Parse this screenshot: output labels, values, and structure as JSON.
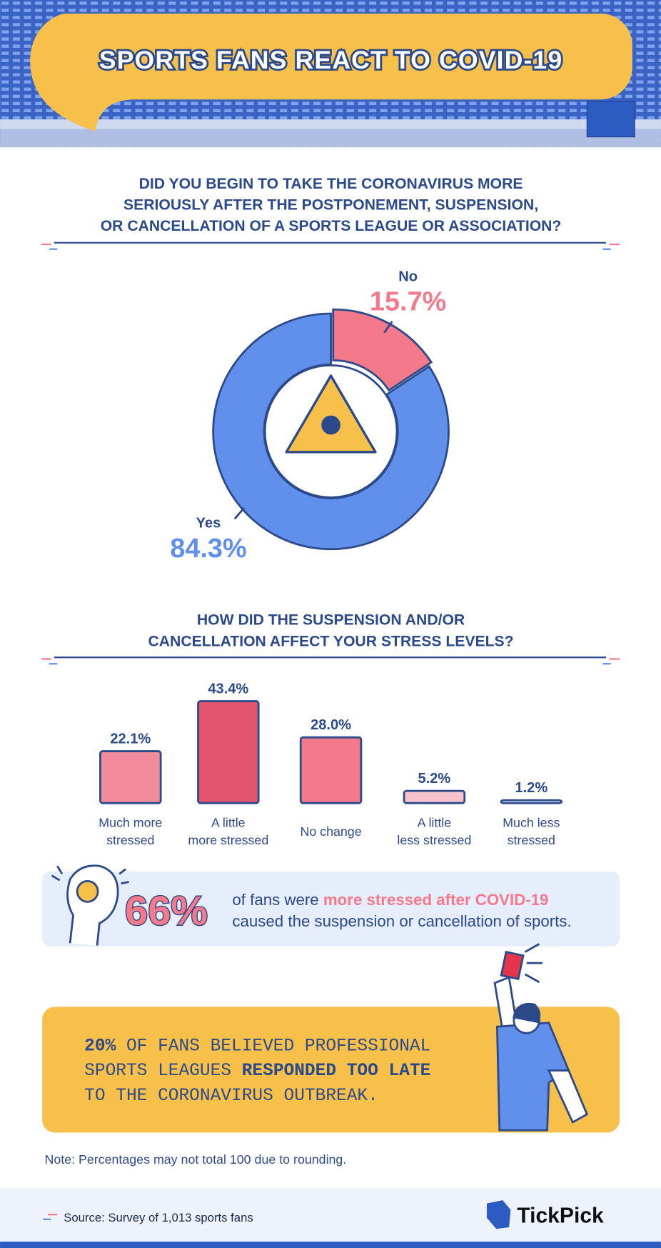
{
  "header": {
    "title": "SPORTS FANS REACT TO COVID-19"
  },
  "chart_data": [
    {
      "type": "pie",
      "title": [
        "DID YOU BEGIN TO TAKE THE CORONAVIRUS MORE",
        "SERIOUSLY AFTER THE POSTPONEMENT, SUSPENSION,",
        "OR CANCELLATION OF A SPORTS LEAGUE OR ASSOCIATION?"
      ],
      "categories": [
        "No",
        "Yes"
      ],
      "values": [
        15.7,
        84.3
      ],
      "value_labels": [
        "15.7%",
        "84.3%"
      ],
      "colors": [
        "#f47a8b",
        "#6090ec"
      ]
    },
    {
      "type": "bar",
      "title": [
        "HOW DID THE SUSPENSION AND/OR",
        "CANCELLATION AFFECT YOUR STRESS LEVELS?"
      ],
      "categories": [
        [
          "Much more",
          "stressed"
        ],
        [
          "A little",
          "more stressed"
        ],
        [
          "No change"
        ],
        [
          "A little",
          "less stressed"
        ],
        [
          "Much less",
          "stressed"
        ]
      ],
      "values": [
        22.1,
        43.4,
        28.0,
        5.2,
        1.2
      ],
      "value_labels": [
        "22.1%",
        "43.4%",
        "28.0%",
        "5.2%",
        "1.2%"
      ],
      "colors": [
        "#f28b9b",
        "#e3536b",
        "#f47a8b",
        "#f7c3cd",
        "#ffffff"
      ]
    }
  ],
  "stress_callout": {
    "figure": "66%",
    "text_1": "of fans were ",
    "highlight": "more stressed after COVID-19",
    "text_2": "caused the suspension or cancellation of sports."
  },
  "late_callout": {
    "figure": "20%",
    "line_1": " OF FANS BELIEVED PROFESSIONAL",
    "line_2a": "SPORTS LEAGUES ",
    "line_2b": "RESPONDED TOO LATE",
    "line_3": "TO THE CORONAVIRUS OUTBREAK."
  },
  "note": "Note: Percentages may not total 100 due to rounding.",
  "source": "Source: Survey of 1,013 sports fans",
  "brand": "TickPick"
}
